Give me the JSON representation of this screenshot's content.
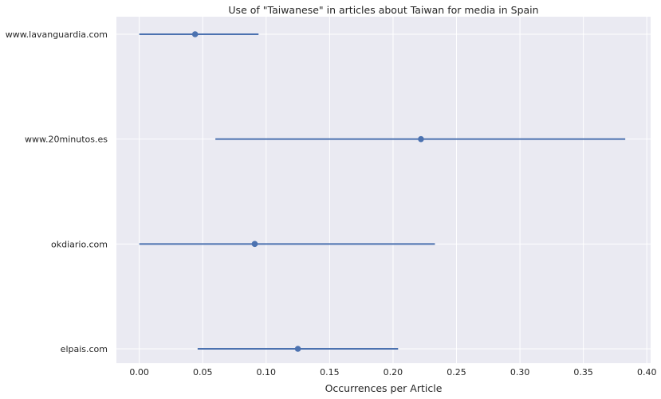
{
  "chart_data": {
    "type": "scatter",
    "title": "Use of \"Taiwanese\" in articles about Taiwan for media in Spain",
    "xlabel": "Occurrences per Article",
    "ylabel": "",
    "xlim": [
      -0.018,
      0.403
    ],
    "xticks": [
      0.0,
      0.05,
      0.1,
      0.15,
      0.2,
      0.25,
      0.3,
      0.35,
      0.4
    ],
    "xtick_labels": [
      "0.00",
      "0.05",
      "0.10",
      "0.15",
      "0.20",
      "0.25",
      "0.30",
      "0.35",
      "0.40"
    ],
    "categories": [
      "www.lavanguardia.com",
      "www.20minutos.es",
      "okdiario.com",
      "elpais.com"
    ],
    "points": [
      {
        "category": "www.lavanguardia.com",
        "value": 0.044,
        "ci_low": 0.0,
        "ci_high": 0.094
      },
      {
        "category": "www.20minutos.es",
        "value": 0.222,
        "ci_low": 0.06,
        "ci_high": 0.383
      },
      {
        "category": "okdiario.com",
        "value": 0.091,
        "ci_low": 0.0,
        "ci_high": 0.233
      },
      {
        "category": "elpais.com",
        "value": 0.125,
        "ci_low": 0.046,
        "ci_high": 0.204
      }
    ],
    "grid": true,
    "colors": {
      "series": "#4c72b0",
      "background": "#eaeaf2",
      "grid": "#ffffff"
    }
  }
}
